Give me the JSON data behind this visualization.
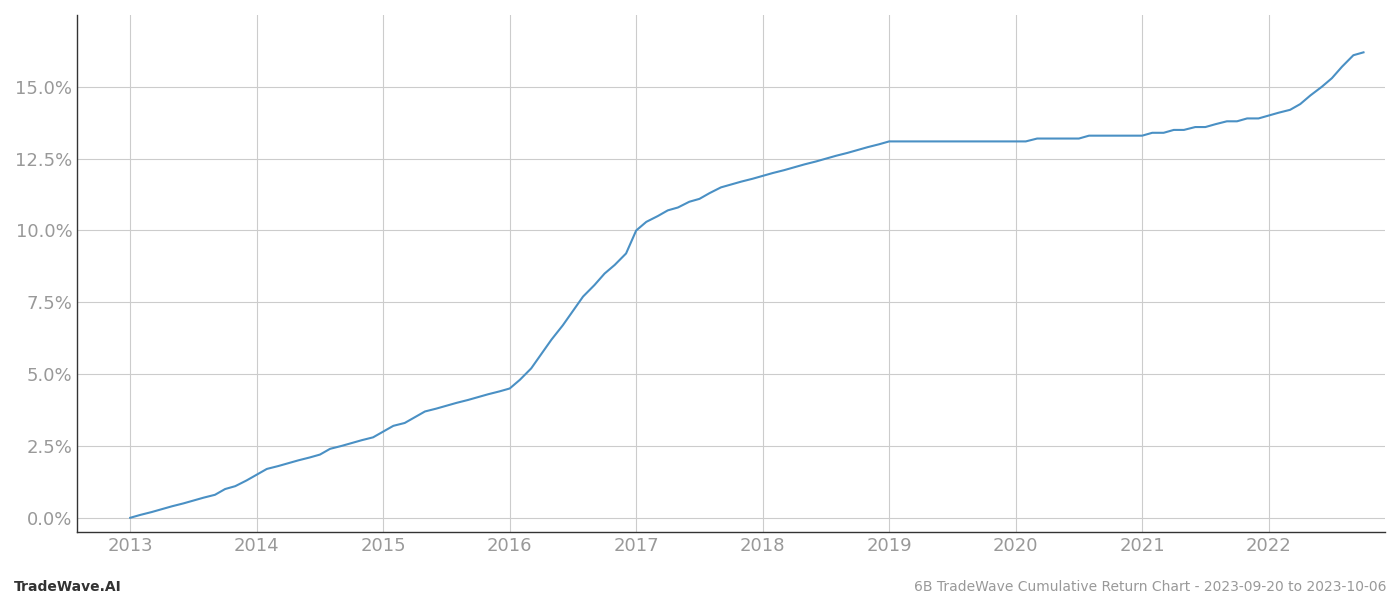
{
  "title": "6B TradeWave Cumulative Return Chart - 2023-09-20 to 2023-10-06",
  "footer_left": "TradeWave.AI",
  "footer_right": "6B TradeWave Cumulative Return Chart - 2023-09-20 to 2023-10-06",
  "line_color": "#4a90c4",
  "background_color": "#ffffff",
  "grid_color": "#cccccc",
  "x_years": [
    2013,
    2014,
    2015,
    2016,
    2017,
    2018,
    2019,
    2020,
    2021,
    2022
  ],
  "data_x": [
    2013.0,
    2013.08,
    2013.17,
    2013.25,
    2013.33,
    2013.42,
    2013.5,
    2013.58,
    2013.67,
    2013.75,
    2013.83,
    2013.92,
    2014.0,
    2014.08,
    2014.17,
    2014.25,
    2014.33,
    2014.42,
    2014.5,
    2014.58,
    2014.67,
    2014.75,
    2014.83,
    2014.92,
    2015.0,
    2015.08,
    2015.17,
    2015.25,
    2015.33,
    2015.42,
    2015.5,
    2015.58,
    2015.67,
    2015.75,
    2015.83,
    2015.92,
    2016.0,
    2016.08,
    2016.17,
    2016.25,
    2016.33,
    2016.42,
    2016.5,
    2016.58,
    2016.67,
    2016.75,
    2016.83,
    2016.92,
    2017.0,
    2017.08,
    2017.17,
    2017.25,
    2017.33,
    2017.42,
    2017.5,
    2017.58,
    2017.67,
    2017.75,
    2017.83,
    2017.92,
    2018.0,
    2018.08,
    2018.17,
    2018.25,
    2018.33,
    2018.42,
    2018.5,
    2018.58,
    2018.67,
    2018.75,
    2018.83,
    2018.92,
    2019.0,
    2019.08,
    2019.17,
    2019.25,
    2019.33,
    2019.42,
    2019.5,
    2019.58,
    2019.67,
    2019.75,
    2019.83,
    2019.92,
    2020.0,
    2020.08,
    2020.17,
    2020.25,
    2020.33,
    2020.42,
    2020.5,
    2020.58,
    2020.67,
    2020.75,
    2020.83,
    2020.92,
    2021.0,
    2021.08,
    2021.17,
    2021.25,
    2021.33,
    2021.42,
    2021.5,
    2021.58,
    2021.67,
    2021.75,
    2021.83,
    2021.92,
    2022.0,
    2022.08,
    2022.17,
    2022.25,
    2022.33,
    2022.42,
    2022.5,
    2022.58,
    2022.67,
    2022.75
  ],
  "data_y": [
    0.0,
    0.001,
    0.002,
    0.003,
    0.004,
    0.005,
    0.006,
    0.007,
    0.008,
    0.01,
    0.011,
    0.013,
    0.015,
    0.017,
    0.018,
    0.019,
    0.02,
    0.021,
    0.022,
    0.024,
    0.025,
    0.026,
    0.027,
    0.028,
    0.03,
    0.032,
    0.033,
    0.035,
    0.037,
    0.038,
    0.039,
    0.04,
    0.041,
    0.042,
    0.043,
    0.044,
    0.045,
    0.048,
    0.052,
    0.057,
    0.062,
    0.067,
    0.072,
    0.077,
    0.081,
    0.085,
    0.088,
    0.092,
    0.1,
    0.103,
    0.105,
    0.107,
    0.108,
    0.11,
    0.111,
    0.113,
    0.115,
    0.116,
    0.117,
    0.118,
    0.119,
    0.12,
    0.121,
    0.122,
    0.123,
    0.124,
    0.125,
    0.126,
    0.127,
    0.128,
    0.129,
    0.13,
    0.131,
    0.131,
    0.131,
    0.131,
    0.131,
    0.131,
    0.131,
    0.131,
    0.131,
    0.131,
    0.131,
    0.131,
    0.131,
    0.131,
    0.132,
    0.132,
    0.132,
    0.132,
    0.132,
    0.133,
    0.133,
    0.133,
    0.133,
    0.133,
    0.133,
    0.134,
    0.134,
    0.135,
    0.135,
    0.136,
    0.136,
    0.137,
    0.138,
    0.138,
    0.139,
    0.139,
    0.14,
    0.141,
    0.142,
    0.144,
    0.147,
    0.15,
    0.153,
    0.157,
    0.161,
    0.162
  ],
  "ylim": [
    -0.005,
    0.175
  ],
  "xlim": [
    2012.58,
    2022.92
  ],
  "ytick_values": [
    0.0,
    0.025,
    0.05,
    0.075,
    0.1,
    0.125,
    0.15
  ],
  "ytick_labels": [
    "0.0%",
    "2.5%",
    "5.0%",
    "7.5%",
    "10.0%",
    "12.5%",
    "15.0%"
  ],
  "line_width": 1.5,
  "tick_label_color": "#999999",
  "footer_fontsize": 10,
  "tick_fontsize": 13,
  "spine_color": "#333333"
}
